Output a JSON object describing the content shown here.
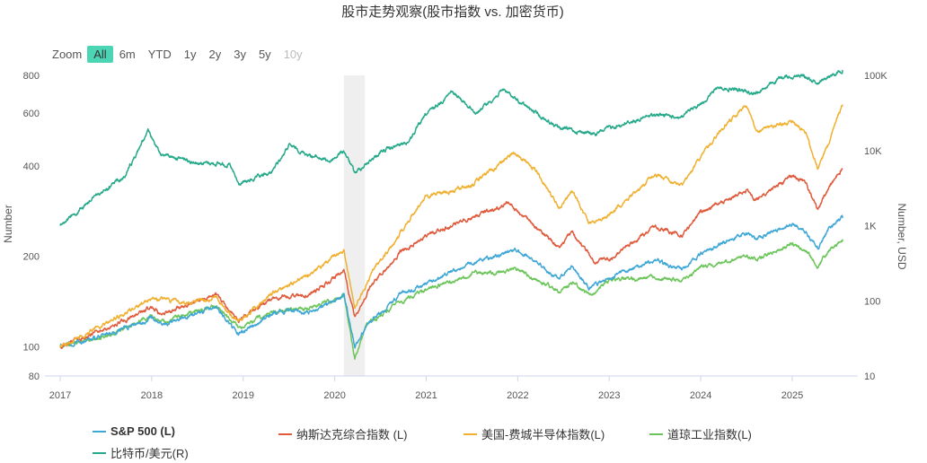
{
  "title": "股市走势观察(股市指数 vs. 加密货币)",
  "zoom": {
    "label": "Zoom",
    "buttons": [
      "All",
      "6m",
      "YTD",
      "1y",
      "2y",
      "3y",
      "5y",
      "10y"
    ]
  },
  "chart_data": {
    "type": "line",
    "title": "股市走势观察(股市指数 vs. 加密货币)",
    "x_range": [
      2017.0,
      2025.55
    ],
    "x_ticks": [
      "2017",
      "2018",
      "2019",
      "2020",
      "2021",
      "2022",
      "2023",
      "2024",
      "2025"
    ],
    "left_axis": {
      "label": "Number",
      "scale": "log",
      "range": [
        80,
        800
      ],
      "ticks": [
        "80",
        "100",
        "200",
        "400",
        "600",
        "800"
      ]
    },
    "right_axis": {
      "label": "Number, USD",
      "scale": "log",
      "range": [
        10,
        100000
      ],
      "ticks": [
        "10",
        "100",
        "1K",
        "10K",
        "100K"
      ]
    },
    "shaded_band": {
      "from": 2020.1,
      "to": 2020.33
    },
    "series": [
      {
        "name": "S&P 500 (L)",
        "axis": "left",
        "color": "#3fa7d6",
        "points": [
          [
            2017.0,
            100
          ],
          [
            2017.5,
            110
          ],
          [
            2018.0,
            125
          ],
          [
            2018.1,
            118
          ],
          [
            2018.7,
            135
          ],
          [
            2018.95,
            110
          ],
          [
            2019.3,
            128
          ],
          [
            2019.5,
            132
          ],
          [
            2019.75,
            130
          ],
          [
            2020.1,
            148
          ],
          [
            2020.22,
            100
          ],
          [
            2020.35,
            118
          ],
          [
            2020.7,
            148
          ],
          [
            2021.0,
            162
          ],
          [
            2021.5,
            190
          ],
          [
            2022.0,
            210
          ],
          [
            2022.45,
            168
          ],
          [
            2022.6,
            185
          ],
          [
            2022.78,
            157
          ],
          [
            2023.0,
            170
          ],
          [
            2023.5,
            195
          ],
          [
            2023.8,
            180
          ],
          [
            2024.0,
            205
          ],
          [
            2024.5,
            240
          ],
          [
            2024.6,
            228
          ],
          [
            2025.0,
            258
          ],
          [
            2025.15,
            240
          ],
          [
            2025.28,
            212
          ],
          [
            2025.4,
            248
          ],
          [
            2025.55,
            268
          ]
        ]
      },
      {
        "name": "纳斯达克综合指数 (L)",
        "axis": "left",
        "color": "#e05a3c",
        "points": [
          [
            2017.0,
            100
          ],
          [
            2017.5,
            115
          ],
          [
            2018.0,
            135
          ],
          [
            2018.1,
            128
          ],
          [
            2018.7,
            150
          ],
          [
            2018.95,
            122
          ],
          [
            2019.3,
            145
          ],
          [
            2019.75,
            150
          ],
          [
            2020.1,
            180
          ],
          [
            2020.22,
            125
          ],
          [
            2020.4,
            160
          ],
          [
            2020.7,
            205
          ],
          [
            2021.0,
            235
          ],
          [
            2021.5,
            270
          ],
          [
            2021.9,
            300
          ],
          [
            2022.45,
            215
          ],
          [
            2022.6,
            240
          ],
          [
            2022.85,
            190
          ],
          [
            2023.0,
            195
          ],
          [
            2023.5,
            250
          ],
          [
            2023.8,
            235
          ],
          [
            2024.0,
            280
          ],
          [
            2024.5,
            330
          ],
          [
            2024.6,
            310
          ],
          [
            2025.0,
            370
          ],
          [
            2025.15,
            350
          ],
          [
            2025.28,
            285
          ],
          [
            2025.4,
            340
          ],
          [
            2025.55,
            392
          ]
        ]
      },
      {
        "name": "美国-费城半导体指数(L)",
        "axis": "left",
        "color": "#f0b030",
        "points": [
          [
            2017.0,
            100
          ],
          [
            2017.5,
            120
          ],
          [
            2018.0,
            145
          ],
          [
            2018.4,
            140
          ],
          [
            2018.7,
            145
          ],
          [
            2018.95,
            120
          ],
          [
            2019.3,
            150
          ],
          [
            2019.75,
            175
          ],
          [
            2020.1,
            210
          ],
          [
            2020.22,
            135
          ],
          [
            2020.45,
            185
          ],
          [
            2020.7,
            235
          ],
          [
            2021.0,
            320
          ],
          [
            2021.3,
            330
          ],
          [
            2021.5,
            345
          ],
          [
            2021.95,
            440
          ],
          [
            2022.2,
            390
          ],
          [
            2022.45,
            290
          ],
          [
            2022.6,
            330
          ],
          [
            2022.78,
            255
          ],
          [
            2023.0,
            275
          ],
          [
            2023.5,
            375
          ],
          [
            2023.8,
            340
          ],
          [
            2024.0,
            430
          ],
          [
            2024.3,
            560
          ],
          [
            2024.5,
            640
          ],
          [
            2024.6,
            520
          ],
          [
            2025.0,
            560
          ],
          [
            2025.15,
            510
          ],
          [
            2025.28,
            395
          ],
          [
            2025.4,
            480
          ],
          [
            2025.55,
            640
          ]
        ]
      },
      {
        "name": "道琼工业指数(L)",
        "axis": "left",
        "color": "#6cc55a",
        "points": [
          [
            2017.0,
            100
          ],
          [
            2017.5,
            108
          ],
          [
            2018.0,
            128
          ],
          [
            2018.1,
            120
          ],
          [
            2018.7,
            138
          ],
          [
            2018.95,
            115
          ],
          [
            2019.3,
            130
          ],
          [
            2019.75,
            135
          ],
          [
            2020.1,
            148
          ],
          [
            2020.22,
            92
          ],
          [
            2020.35,
            118
          ],
          [
            2020.7,
            140
          ],
          [
            2021.0,
            155
          ],
          [
            2021.5,
            175
          ],
          [
            2022.0,
            180
          ],
          [
            2022.45,
            153
          ],
          [
            2022.6,
            163
          ],
          [
            2022.78,
            148
          ],
          [
            2023.0,
            166
          ],
          [
            2023.5,
            170
          ],
          [
            2023.8,
            165
          ],
          [
            2024.0,
            185
          ],
          [
            2024.5,
            200
          ],
          [
            2024.6,
            195
          ],
          [
            2025.0,
            220
          ],
          [
            2025.15,
            210
          ],
          [
            2025.28,
            185
          ],
          [
            2025.4,
            210
          ],
          [
            2025.55,
            228
          ]
        ]
      },
      {
        "name": "比特币/美元(R)",
        "axis": "right",
        "color": "#26a98a",
        "points": [
          [
            2017.0,
            1000
          ],
          [
            2017.4,
            2500
          ],
          [
            2017.7,
            4500
          ],
          [
            2017.96,
            18000
          ],
          [
            2018.1,
            9000
          ],
          [
            2018.5,
            7000
          ],
          [
            2018.85,
            6500
          ],
          [
            2018.95,
            3500
          ],
          [
            2019.3,
            5000
          ],
          [
            2019.5,
            11500
          ],
          [
            2019.75,
            8500
          ],
          [
            2019.95,
            7200
          ],
          [
            2020.1,
            10000
          ],
          [
            2020.22,
            5000
          ],
          [
            2020.5,
            9500
          ],
          [
            2020.8,
            13000
          ],
          [
            2021.0,
            30000
          ],
          [
            2021.28,
            60000
          ],
          [
            2021.55,
            32000
          ],
          [
            2021.85,
            65000
          ],
          [
            2022.0,
            45000
          ],
          [
            2022.45,
            20000
          ],
          [
            2022.85,
            16500
          ],
          [
            2023.0,
            20000
          ],
          [
            2023.5,
            30000
          ],
          [
            2023.8,
            28000
          ],
          [
            2024.0,
            42000
          ],
          [
            2024.2,
            70000
          ],
          [
            2024.6,
            58000
          ],
          [
            2024.9,
            95000
          ],
          [
            2025.1,
            100000
          ],
          [
            2025.28,
            80000
          ],
          [
            2025.45,
            105000
          ],
          [
            2025.55,
            118000
          ]
        ]
      }
    ]
  },
  "legend": {
    "items": [
      {
        "label": "S&P 500 (L)",
        "color": "#3fa7d6"
      },
      {
        "label": "纳斯达克综合指数 (L)",
        "color": "#e05a3c"
      },
      {
        "label": "美国-费城半导体指数(L)",
        "color": "#f0b030"
      },
      {
        "label": "道琼工业指数(L)",
        "color": "#6cc55a"
      },
      {
        "label": "比特币/美元(R)",
        "color": "#26a98a"
      }
    ]
  }
}
